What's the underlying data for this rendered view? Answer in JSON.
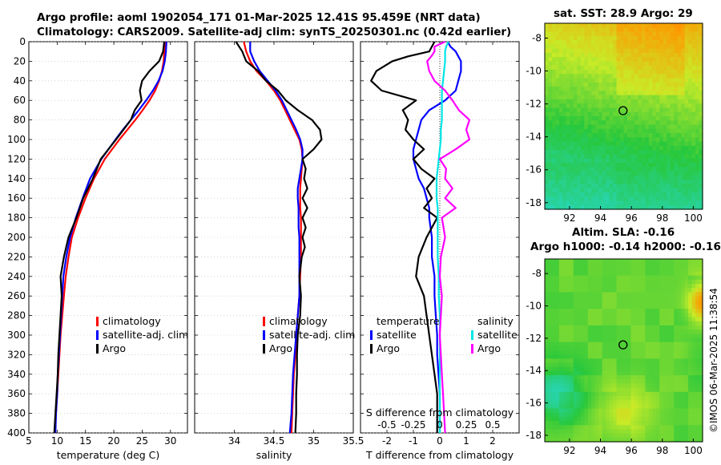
{
  "header": {
    "title_line1": "Argo profile: aoml 1902054_171 01-Mar-2025 12.41S 95.459E (NRT data)",
    "title_line2": "Climatology: CARS2009. Satellite-adj clim: synTS_20250301.nc (0.42d earlier)"
  },
  "maps": {
    "sst_title": "sat. SST: 28.9 Argo: 29",
    "sla_title1": "Altim. SLA: -0.16",
    "sla_title2": "Argo h1000: -0.14 h2000: -0.16",
    "xticks": [
      "92",
      "94",
      "96",
      "98",
      "100"
    ],
    "yticks": [
      "-8",
      "-10",
      "-12",
      "-14",
      "-16",
      "-18"
    ],
    "argo_lon": 95.46,
    "argo_lat": -12.41
  },
  "footer": {
    "stamp": "©IMOS 06-Mar-2025 11:38:54"
  },
  "colors": {
    "clim": "#ff0000",
    "sat": "#0000ff",
    "argo": "#000000",
    "sal_sat": "#00e5e5",
    "sal_argo": "#ff00ff"
  },
  "legends": {
    "temp": [
      "climatology",
      "satellite-adj. clim",
      "Argo"
    ],
    "sal": [
      "climatology",
      "satellite-adj. clim",
      "Argo"
    ],
    "diff_t_head": "temperature",
    "diff_s_head": "salinity",
    "diff_t": [
      "satellite",
      "Argo"
    ],
    "diff_s": [
      "satellite",
      "Argo"
    ]
  },
  "chart_data": [
    {
      "type": "line",
      "xlabel": "temperature (deg C)",
      "ylabel": "depth",
      "xlim": [
        5,
        33
      ],
      "ylim": [
        400,
        0
      ],
      "xticks": [
        "5",
        "10",
        "15",
        "20",
        "25",
        "30"
      ],
      "yticks": [
        "0",
        "20",
        "40",
        "60",
        "80",
        "100",
        "120",
        "140",
        "160",
        "180",
        "200",
        "220",
        "240",
        "260",
        "280",
        "300",
        "320",
        "340",
        "360",
        "380",
        "400"
      ],
      "depth": [
        0,
        10,
        20,
        30,
        40,
        50,
        60,
        70,
        80,
        90,
        100,
        120,
        140,
        160,
        180,
        200,
        220,
        240,
        260,
        280,
        300,
        320,
        340,
        360,
        380,
        400
      ],
      "series": [
        {
          "name": "climatology",
          "values": [
            29,
            28.9,
            28.8,
            28.5,
            28.0,
            27.3,
            26.3,
            25.1,
            23.8,
            22.4,
            21.0,
            18.4,
            16.5,
            15.0,
            13.7,
            12.6,
            12.0,
            11.5,
            11.2,
            10.9,
            10.6,
            10.4,
            10.2,
            10.0,
            9.8,
            9.6
          ]
        },
        {
          "name": "satellite-adj. clim",
          "values": [
            29.3,
            29.2,
            29.0,
            28.6,
            27.9,
            26.9,
            25.7,
            24.4,
            23.0,
            21.6,
            20.3,
            17.8,
            15.8,
            14.5,
            13.3,
            12.3,
            11.6,
            11.1,
            10.9,
            10.7,
            10.5,
            10.3,
            10.1,
            10.0,
            9.8,
            9.7
          ]
        },
        {
          "name": "Argo",
          "values": [
            28.9,
            28.7,
            28.0,
            26.3,
            25.0,
            24.6,
            24.9,
            23.7,
            23.0,
            21.7,
            20.4,
            17.7,
            16.3,
            14.6,
            13.4,
            12.0,
            11.2,
            10.6,
            10.8,
            10.6,
            10.4,
            10.2,
            10.1,
            9.9,
            9.7,
            9.5
          ]
        }
      ]
    },
    {
      "type": "line",
      "xlabel": "salinity",
      "xlim": [
        33.5,
        35.5
      ],
      "ylim": [
        400,
        0
      ],
      "xticks": [
        "34",
        "34.5",
        "35",
        "35.5"
      ],
      "depth": [
        0,
        10,
        20,
        30,
        40,
        50,
        60,
        70,
        80,
        90,
        100,
        110,
        120,
        130,
        140,
        150,
        160,
        170,
        180,
        190,
        200,
        210,
        220,
        240,
        260,
        280,
        300,
        320,
        340,
        360,
        380,
        400
      ],
      "series": [
        {
          "name": "climatology",
          "values": [
            34.12,
            34.15,
            34.2,
            34.28,
            34.4,
            34.5,
            34.58,
            34.64,
            34.7,
            34.76,
            34.82,
            34.85,
            34.86,
            34.85,
            34.84,
            34.83,
            34.83,
            34.83,
            34.84,
            34.84,
            34.84,
            34.84,
            34.84,
            34.83,
            34.82,
            34.8,
            34.78,
            34.77,
            34.75,
            34.74,
            34.73,
            34.72
          ]
        },
        {
          "name": "satellite-adj. clim",
          "values": [
            34.2,
            34.2,
            34.25,
            34.32,
            34.42,
            34.52,
            34.6,
            34.66,
            34.72,
            34.78,
            34.83,
            34.86,
            34.86,
            34.84,
            34.82,
            34.8,
            34.8,
            34.81,
            34.81,
            34.81,
            34.82,
            34.82,
            34.82,
            34.82,
            34.82,
            34.8,
            34.78,
            34.76,
            34.74,
            34.73,
            34.72,
            34.7
          ]
        },
        {
          "name": "Argo",
          "values": [
            34.02,
            34.1,
            34.15,
            34.3,
            34.4,
            34.55,
            34.65,
            34.8,
            34.98,
            35.08,
            35.1,
            35.0,
            34.86,
            34.9,
            34.88,
            34.92,
            34.86,
            34.92,
            34.86,
            34.9,
            34.86,
            34.89,
            34.85,
            34.82,
            34.84,
            34.83,
            34.8,
            34.79,
            34.79,
            34.78,
            34.78,
            34.77
          ]
        }
      ]
    },
    {
      "type": "line",
      "xlabel": "T difference from climatology",
      "title": "S difference from climatology",
      "xlim": [
        -3,
        3
      ],
      "s_xlim": [
        -0.75,
        0.75
      ],
      "ylim": [
        400,
        0
      ],
      "xticks": [
        "-2",
        "-1",
        "0",
        "1",
        "2"
      ],
      "s_xticks": [
        "-0.5",
        "-0.25",
        "0",
        "0.25",
        "0.5"
      ],
      "depth": [
        0,
        5,
        10,
        15,
        20,
        30,
        40,
        50,
        60,
        70,
        80,
        90,
        100,
        110,
        120,
        130,
        140,
        150,
        160,
        170,
        180,
        200,
        220,
        240,
        260,
        280,
        300,
        320,
        340,
        360,
        380,
        400
      ],
      "series": [
        {
          "name": "temperature satellite",
          "axis": "T",
          "values": [
            0.3,
            0.4,
            0.6,
            0.7,
            0.8,
            0.8,
            0.7,
            0.6,
            0.2,
            -0.4,
            -0.7,
            -0.8,
            -0.9,
            -1.0,
            -1.0,
            -0.9,
            -0.8,
            -0.6,
            -0.5,
            -0.4,
            -0.4,
            -0.3,
            -0.3,
            -0.2,
            -0.2,
            -0.15,
            -0.1,
            -0.1,
            -0.05,
            0,
            0,
            0
          ]
        },
        {
          "name": "temperature Argo",
          "axis": "T",
          "values": [
            -0.2,
            -0.3,
            -0.4,
            -1.2,
            -1.8,
            -2.4,
            -2.6,
            -2.2,
            -0.9,
            -1.4,
            -1.2,
            -1.3,
            -1.0,
            -0.6,
            -1.0,
            -0.7,
            -0.2,
            -0.5,
            -0.3,
            -0.6,
            -0.1,
            -0.5,
            -0.8,
            -0.9,
            -0.6,
            -0.5,
            -0.4,
            -0.3,
            -0.2,
            -0.1,
            -0.1,
            -0.1
          ]
        },
        {
          "name": "salinity satellite",
          "axis": "S",
          "values": [
            0.08,
            0.06,
            0.05,
            0.05,
            0.05,
            0.04,
            0.03,
            0.02,
            0.02,
            0.02,
            0.02,
            0.01,
            0.01,
            0.0,
            -0.01,
            -0.02,
            -0.03,
            -0.03,
            -0.03,
            -0.02,
            -0.02,
            -0.02,
            -0.02,
            -0.01,
            -0.01,
            0.0,
            0.0,
            0.0,
            0.0,
            0.0,
            0.0,
            0.0
          ]
        },
        {
          "name": "salinity Argo",
          "axis": "S",
          "values": [
            0.05,
            -0.05,
            -0.05,
            -0.08,
            -0.12,
            -0.1,
            -0.05,
            0.05,
            0.12,
            0.18,
            0.28,
            0.25,
            0.28,
            0.15,
            0.0,
            0.06,
            0.05,
            0.12,
            0.05,
            0.15,
            0.02,
            0.05,
            0.01,
            0.0,
            0.02,
            0.01,
            0.0,
            0.01,
            0.02,
            0.03,
            0.04,
            0.05
          ]
        }
      ]
    }
  ]
}
